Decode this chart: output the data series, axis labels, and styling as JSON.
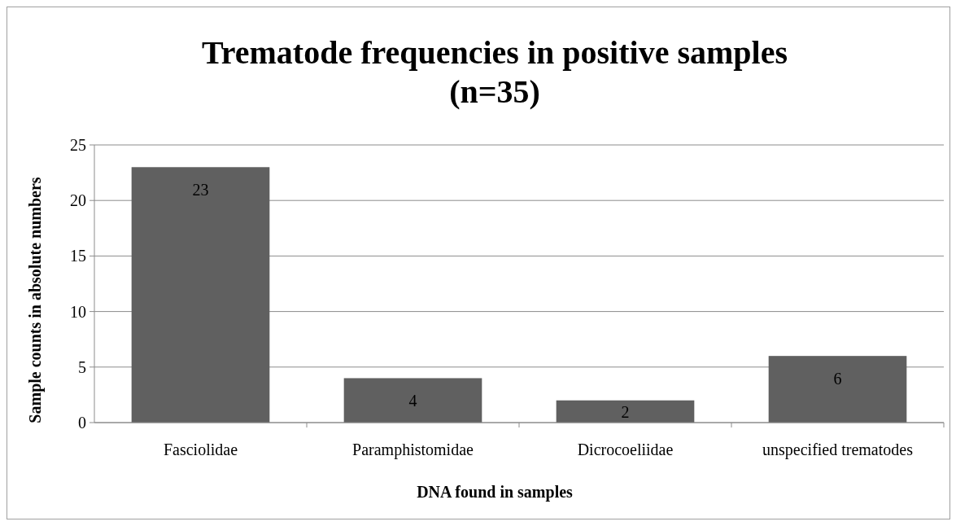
{
  "chart_data": {
    "type": "bar",
    "title": "Trematode frequencies in positive samples (n=35)",
    "xlabel": "DNA found in samples",
    "ylabel": "Sample counts in absolute numbers",
    "categories": [
      "Fasciolidae",
      "Paramphistomidae",
      "Dicrocoeliidae",
      "unspecified trematodes"
    ],
    "values": [
      23,
      4,
      2,
      6
    ],
    "color": "#606060",
    "ylim": [
      0,
      25
    ],
    "yticks": [
      0,
      5,
      10,
      15,
      20,
      25
    ],
    "grid": "y",
    "data_labels": true
  }
}
